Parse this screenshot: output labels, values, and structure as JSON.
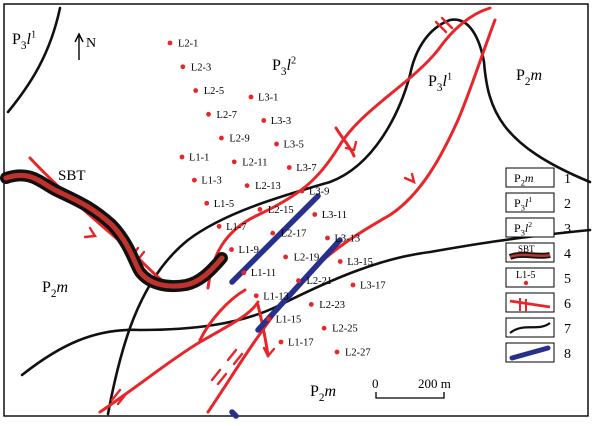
{
  "north_label": "N",
  "fault_label": "SBT",
  "units": [
    {
      "id": "p3l1-topleft",
      "base": "P",
      "sub": "3",
      "tail": "l",
      "sup": "1"
    },
    {
      "id": "p3l2-top",
      "base": "P",
      "sub": "3",
      "tail": "l",
      "sup": "2"
    },
    {
      "id": "p3l1-right",
      "base": "P",
      "sub": "3",
      "tail": "l",
      "sup": "1"
    },
    {
      "id": "p2m-topright",
      "base": "P",
      "sub": "2",
      "tail": "m",
      "sup": ""
    },
    {
      "id": "p2m-left",
      "base": "P",
      "sub": "2",
      "tail": "m",
      "sup": ""
    },
    {
      "id": "p2m-bottom",
      "base": "P",
      "sub": "2",
      "tail": "m",
      "sup": ""
    }
  ],
  "scale_bar": {
    "start": "0",
    "end": "200 m"
  },
  "legend": [
    {
      "num": "1",
      "kind": "unit",
      "base": "P",
      "sub": "2",
      "tail": "m",
      "sup": ""
    },
    {
      "num": "2",
      "kind": "unit",
      "base": "P",
      "sub": "3",
      "tail": "l",
      "sup": "1"
    },
    {
      "num": "3",
      "kind": "unit",
      "base": "P",
      "sub": "3",
      "tail": "l",
      "sup": "2"
    },
    {
      "num": "4",
      "kind": "sbt",
      "text": "SBT"
    },
    {
      "num": "5",
      "kind": "point",
      "text": "L1-5"
    },
    {
      "num": "6",
      "kind": "fault"
    },
    {
      "num": "7",
      "kind": "boundary"
    },
    {
      "num": "8",
      "kind": "vein"
    }
  ],
  "points_L2": [
    "L2-1",
    "L2-3",
    "L2-5",
    "L2-7",
    "L2-9",
    "L2-11",
    "L2-13",
    "L2-15",
    "L2-17",
    "L2-19",
    "L2-21",
    "L2-23",
    "L2-25",
    "L2-27"
  ],
  "points_L3": [
    "L3-1",
    "L3-3",
    "L3-5",
    "L3-7",
    "L3-9",
    "L3-11",
    "L3-13",
    "L3-15",
    "L3-17"
  ],
  "points_L1": [
    "L1-1",
    "L1-3",
    "L1-5",
    "L1-7",
    "L1-9",
    "L1-11",
    "L1-13",
    "L1-15",
    "L1-17"
  ]
}
